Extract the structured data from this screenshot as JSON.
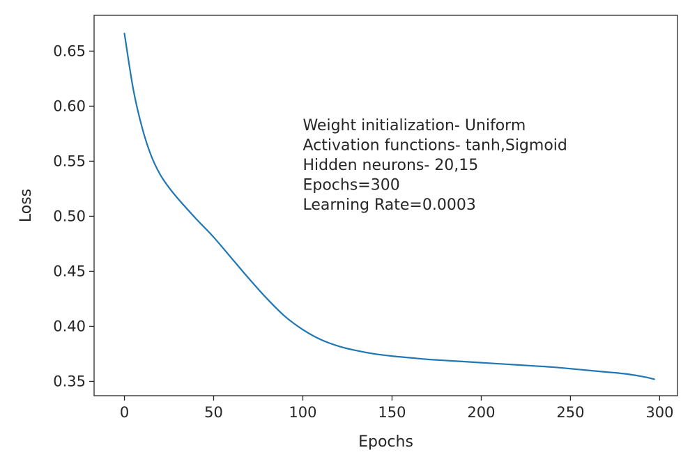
{
  "chart_data": {
    "type": "line",
    "title": "",
    "xlabel": "Epochs",
    "ylabel": "Loss",
    "xlim": [
      -17,
      310
    ],
    "ylim": [
      0.337,
      0.6825
    ],
    "xticks": [
      0,
      50,
      100,
      150,
      200,
      250,
      300
    ],
    "yticks": [
      0.35,
      0.4,
      0.45,
      0.5,
      0.55,
      0.6,
      0.65
    ],
    "xtick_labels": [
      "0",
      "50",
      "100",
      "150",
      "200",
      "250",
      "300"
    ],
    "ytick_labels": [
      "0.35",
      "0.40",
      "0.45",
      "0.50",
      "0.55",
      "0.60",
      "0.65"
    ],
    "grid": false,
    "legend": "none",
    "series": [
      {
        "color": "#1f77b4",
        "x": [
          0,
          5,
          10,
          15,
          20,
          25,
          30,
          40,
          50,
          60,
          70,
          80,
          90,
          100,
          110,
          120,
          130,
          140,
          150,
          160,
          170,
          180,
          190,
          200,
          210,
          220,
          230,
          240,
          250,
          260,
          270,
          280,
          290,
          297
        ],
        "y": [
          0.666,
          0.615,
          0.58,
          0.555,
          0.538,
          0.526,
          0.516,
          0.498,
          0.481,
          0.462,
          0.443,
          0.425,
          0.409,
          0.397,
          0.388,
          0.382,
          0.378,
          0.375,
          0.373,
          0.3715,
          0.37,
          0.369,
          0.368,
          0.367,
          0.366,
          0.365,
          0.364,
          0.363,
          0.3615,
          0.36,
          0.3585,
          0.357,
          0.3545,
          0.352
        ]
      }
    ],
    "annotations": [
      "Weight initialization- Uniform",
      "Activation functions- tanh,Sigmoid",
      "Hidden neurons- 20,15",
      "Epochs=300",
      "Learning Rate=0.0003"
    ],
    "annotation_anchor": {
      "x": 100,
      "y": 0.578
    }
  }
}
